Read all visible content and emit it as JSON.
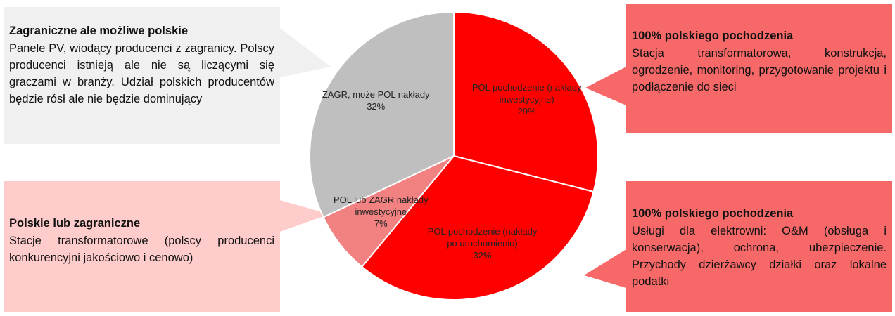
{
  "chart_data": {
    "type": "pie",
    "categories": [
      "POL pochodzenie (nakłady inwestycyjne)",
      "POL pochodzenie (nakłady po uruchomieniu)",
      "POL lub ZAGR nakłady inwestycyjne",
      "ZAGR, może POL nakłady"
    ],
    "values": [
      29,
      32,
      7,
      32
    ],
    "value_labels": [
      "29%",
      "32%",
      "7%",
      "32%"
    ],
    "colors": [
      "#ff0000",
      "#ff0000",
      "#f28282",
      "#bfbfbf"
    ],
    "annotations": [
      {
        "title": "Zagraniczne  ale możliwe polskie",
        "text": "Panele PV, wiodący producenci z zagranicy. Polscy producenci istnieją ale nie są liczącymi się graczami w branży. Udział polskich producentów będzie rósł ale nie będzie dominujący"
      },
      {
        "title": "Polskie lub zagraniczne",
        "text": "Stacje transformatorowe (polscy producenci konkurencyjni jakościowo i cenowo)"
      },
      {
        "title": "100% polskiego pochodzenia",
        "text": "Stacja transformatorowa, konstrukcja, ogrodzenie, monitoring, przygotowanie projektu i podłączenie do sieci"
      },
      {
        "title": "100% polskiego pochodzenia",
        "text": "Usługi dla elektrowni: O&M (obsługa i konserwacja), ochrona, ubezpieczenie. Przychody dzierżawcy działki oraz lokalne podatki"
      }
    ]
  }
}
